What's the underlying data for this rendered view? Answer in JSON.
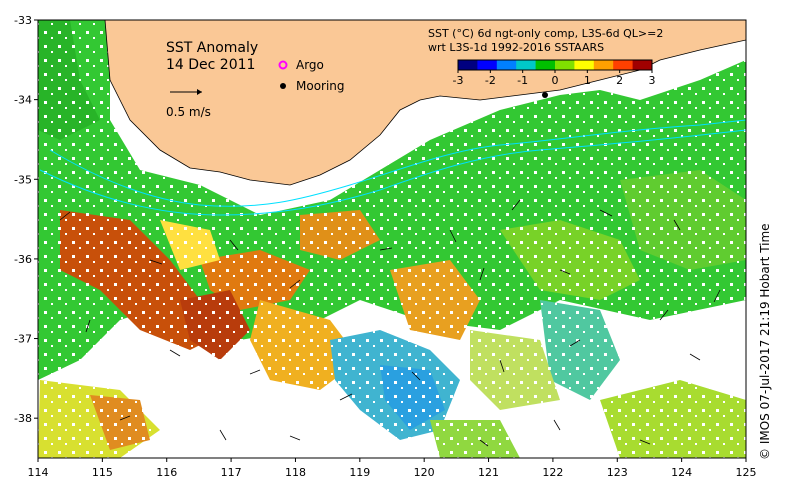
{
  "title": "SST Anomaly",
  "date": "14 Dec 2011",
  "scale_label": "0.5 m/s",
  "legend": {
    "argo": "Argo",
    "mooring": "Mooring"
  },
  "colorbar": {
    "title_line1": "SST (°C) 6d ngt-only comp, L3S-6d QL>=2",
    "title_line2": "wrt L3S-1d 1992-2016 SSTAARS",
    "ticks": [
      "-3",
      "-2",
      "-1",
      "0",
      "1",
      "2",
      "3"
    ],
    "colors": [
      "#000080",
      "#0000ff",
      "#0080ff",
      "#00c8c8",
      "#00c000",
      "#80e000",
      "#ffff00",
      "#ffa000",
      "#ff4000",
      "#a00000"
    ]
  },
  "axes": {
    "lon_ticks": [
      "114",
      "115",
      "116",
      "117",
      "118",
      "119",
      "120",
      "121",
      "122",
      "123",
      "124",
      "125"
    ],
    "lat_ticks": [
      "-33",
      "-34",
      "-35",
      "-36",
      "-37",
      "-38"
    ],
    "lon_range": [
      114,
      125
    ],
    "lat_range": [
      -38.5,
      -33
    ]
  },
  "credit": "©  IMOS 07-Jul-2017 21:19 Hobart Time",
  "colors": {
    "land": "#fac896",
    "frame": "#000000",
    "contour": "#00e0ff"
  }
}
